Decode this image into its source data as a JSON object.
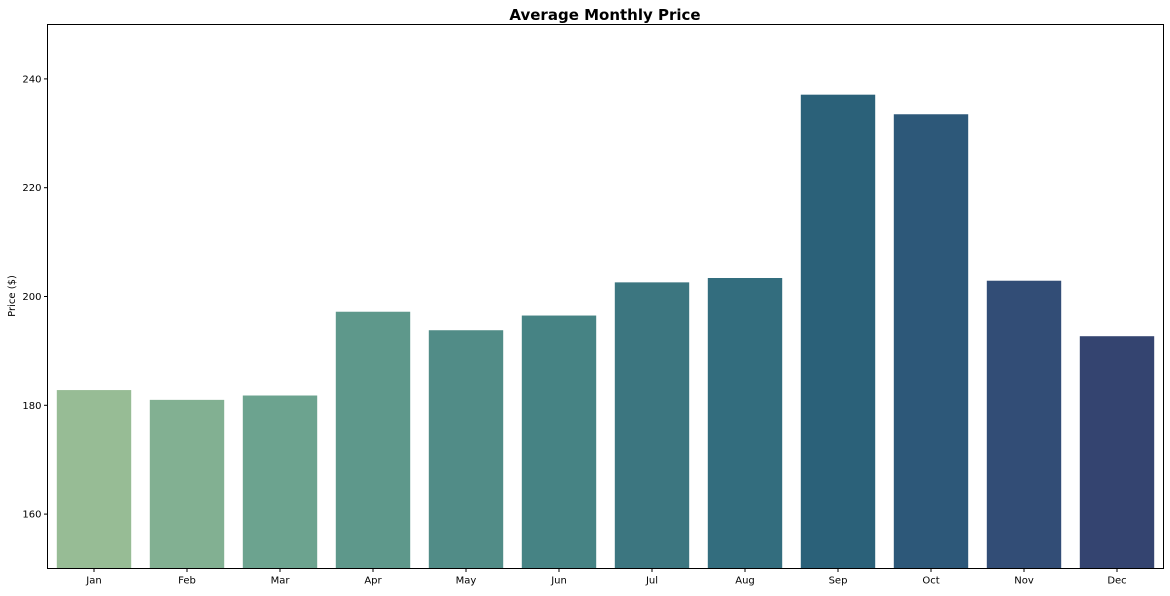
{
  "chart_data": {
    "type": "bar",
    "title": "Average Monthly Price",
    "xlabel": "",
    "ylabel": "Price ($)",
    "ylim": [
      150,
      250
    ],
    "yticks": [
      160,
      180,
      200,
      220,
      240
    ],
    "grid": false,
    "legend": "none",
    "categories": [
      "Jan",
      "Feb",
      "Mar",
      "Apr",
      "May",
      "Jun",
      "Jul",
      "Aug",
      "Sep",
      "Oct",
      "Nov",
      "Dec"
    ],
    "values": [
      182.8,
      181.0,
      181.8,
      197.2,
      193.8,
      196.5,
      202.6,
      203.4,
      237.1,
      233.5,
      202.9,
      192.7
    ],
    "colors": [
      "#97bc95",
      "#82b092",
      "#6ca38f",
      "#5e988b",
      "#518c87",
      "#468384",
      "#3c7680",
      "#336d7e",
      "#2b6179",
      "#2d5879",
      "#324d76",
      "#344470"
    ]
  }
}
